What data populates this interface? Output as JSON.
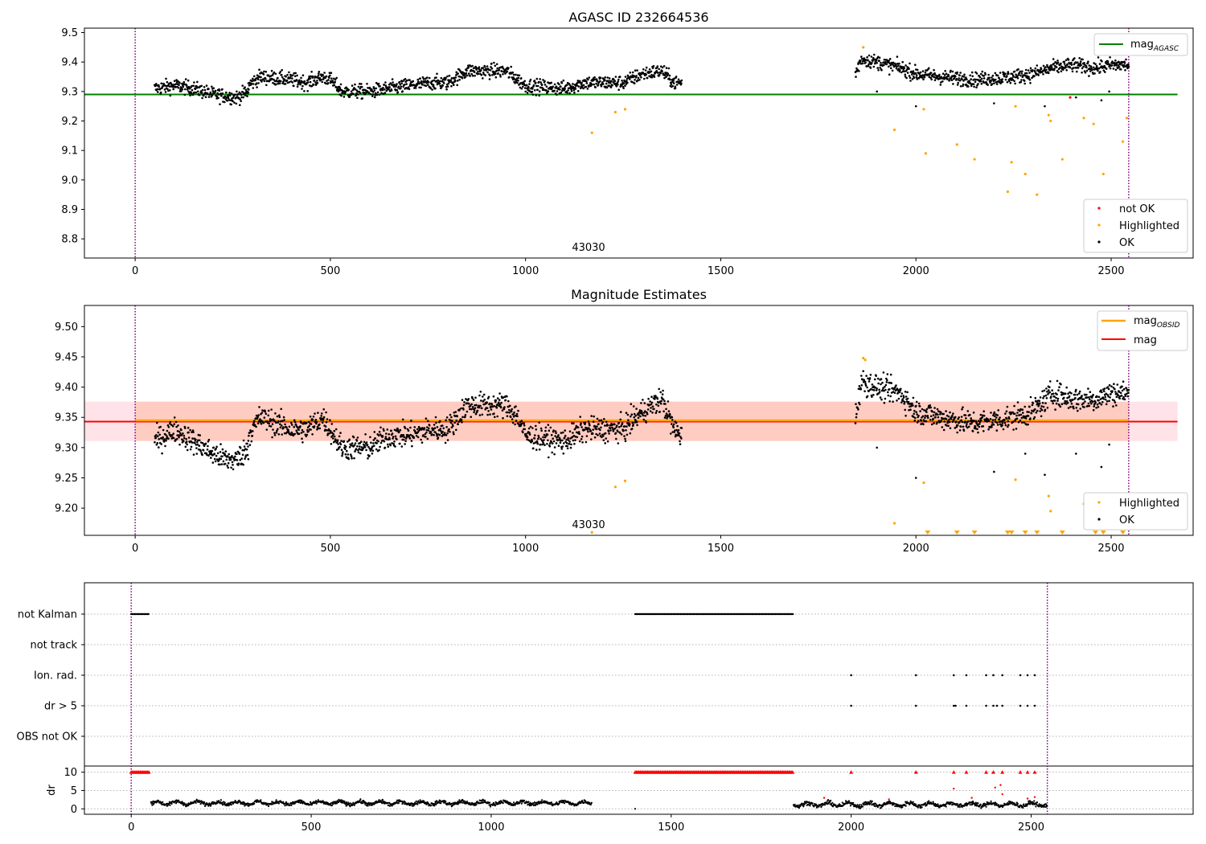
{
  "chart_data": [
    {
      "type": "scatter",
      "title": "AGASC ID 232664536",
      "obsid_annotation": "43030",
      "xlim": [
        -130,
        2710
      ],
      "ylim": [
        8.735,
        9.515
      ],
      "xticks": [
        0,
        500,
        1000,
        1500,
        2000,
        2500
      ],
      "yticks": [
        8.8,
        8.9,
        9.0,
        9.1,
        9.2,
        9.3,
        9.4,
        9.5
      ],
      "vlines": [
        0,
        2545
      ],
      "hline": {
        "y": 9.29,
        "x_range": [
          -130,
          2670
        ],
        "color": "#008000",
        "label_main": "mag",
        "label_sub": "AGASC"
      },
      "legend_top": [
        {
          "label_main": "mag",
          "label_sub": "AGASC",
          "color": "#008000"
        }
      ],
      "legend_bottom": [
        {
          "label": "not OK",
          "color": "#ff0000"
        },
        {
          "label": "Highlighted",
          "color": "#ffa500"
        },
        {
          "label": "OK",
          "color": "#000000"
        }
      ],
      "ok_segments": [
        {
          "x_range": [
            50,
            290
          ],
          "trend": [
            [
              50,
              9.31
            ],
            [
              100,
              9.32
            ],
            [
              150,
              9.31
            ],
            [
              200,
              9.29
            ],
            [
              260,
              9.28
            ],
            [
              290,
              9.3
            ]
          ],
          "noise": 0.012
        },
        {
          "x_range": [
            290,
            1400
          ],
          "trend": [
            [
              290,
              9.32
            ],
            [
              320,
              9.35
            ],
            [
              400,
              9.34
            ],
            [
              440,
              9.33
            ],
            [
              480,
              9.35
            ],
            [
              500,
              9.34
            ],
            [
              530,
              9.3
            ],
            [
              600,
              9.3
            ],
            [
              700,
              9.32
            ],
            [
              760,
              9.33
            ],
            [
              800,
              9.33
            ],
            [
              850,
              9.37
            ],
            [
              950,
              9.37
            ],
            [
              1000,
              9.32
            ],
            [
              1100,
              9.31
            ],
            [
              1150,
              9.33
            ],
            [
              1250,
              9.33
            ],
            [
              1300,
              9.36
            ],
            [
              1350,
              9.37
            ],
            [
              1380,
              9.33
            ],
            [
              1400,
              9.33
            ]
          ],
          "noise": 0.012
        },
        {
          "x_range": [
            1845,
            2545
          ],
          "trend": [
            [
              1845,
              9.36
            ],
            [
              1860,
              9.41
            ],
            [
              1900,
              9.4
            ],
            [
              1960,
              9.38
            ],
            [
              2000,
              9.36
            ],
            [
              2060,
              9.35
            ],
            [
              2150,
              9.34
            ],
            [
              2250,
              9.35
            ],
            [
              2300,
              9.36
            ],
            [
              2350,
              9.38
            ],
            [
              2400,
              9.39
            ],
            [
              2460,
              9.38
            ],
            [
              2500,
              9.39
            ],
            [
              2545,
              9.39
            ]
          ],
          "noise": 0.012
        }
      ],
      "highlighted_points": [
        [
          1170,
          9.16
        ],
        [
          1230,
          9.23
        ],
        [
          1255,
          9.24
        ],
        [
          1865,
          9.45
        ],
        [
          1945,
          9.17
        ],
        [
          2020,
          9.24
        ],
        [
          2025,
          9.09
        ],
        [
          2105,
          9.12
        ],
        [
          2150,
          9.07
        ],
        [
          2235,
          8.96
        ],
        [
          2245,
          9.06
        ],
        [
          2255,
          9.25
        ],
        [
          2280,
          9.02
        ],
        [
          2310,
          8.95
        ],
        [
          2340,
          9.22
        ],
        [
          2345,
          9.2
        ],
        [
          2375,
          9.07
        ],
        [
          2430,
          9.21
        ],
        [
          2455,
          9.19
        ],
        [
          2460,
          8.8
        ],
        [
          2480,
          9.02
        ],
        [
          2530,
          9.13
        ],
        [
          2540,
          9.21
        ]
      ],
      "notok_points": [
        [
          2395,
          9.28
        ]
      ],
      "outlier_ok_points": [
        [
          1900,
          9.3
        ],
        [
          2000,
          9.25
        ],
        [
          2200,
          9.26
        ],
        [
          2330,
          9.25
        ],
        [
          2410,
          9.28
        ],
        [
          2475,
          9.27
        ],
        [
          2495,
          9.3
        ]
      ]
    },
    {
      "type": "scatter",
      "title": "Magnitude Estimates",
      "obsid_annotation": "43030",
      "xlim": [
        -130,
        2710
      ],
      "ylim": [
        9.155,
        9.535
      ],
      "xticks": [
        0,
        500,
        1000,
        1500,
        2000,
        2500
      ],
      "yticks": [
        9.2,
        9.25,
        9.3,
        9.35,
        9.4,
        9.45,
        9.5
      ],
      "ytick_labels": [
        "9.20",
        "9.25",
        "9.30",
        "9.35",
        "9.40",
        "9.45",
        "9.50"
      ],
      "vlines": [
        0,
        2545
      ],
      "mag_line": {
        "y": 9.343,
        "color": "#ff0000"
      },
      "mag_obsid_line": {
        "y": 9.345,
        "color": "#ffa500",
        "x_range": [
          0,
          2545
        ]
      },
      "band": {
        "y_range": [
          9.311,
          9.376
        ],
        "x_range": [
          -130,
          2670
        ]
      },
      "legend_top": [
        {
          "label_main": "mag",
          "label_sub": "OBSID",
          "color": "#ffa500"
        },
        {
          "label_main": "mag",
          "label_sub": "",
          "color": "#ff0000"
        }
      ],
      "legend_bottom": [
        {
          "label": "Highlighted",
          "color": "#ffa500"
        },
        {
          "label": "OK",
          "color": "#000000"
        }
      ],
      "ok_segments": [
        {
          "x_range": [
            50,
            290
          ],
          "trend": [
            [
              50,
              9.31
            ],
            [
              100,
              9.33
            ],
            [
              150,
              9.31
            ],
            [
              200,
              9.29
            ],
            [
              230,
              9.28
            ],
            [
              260,
              9.28
            ],
            [
              290,
              9.3
            ]
          ],
          "noise": 0.01
        },
        {
          "x_range": [
            290,
            1400
          ],
          "trend": [
            [
              290,
              9.32
            ],
            [
              320,
              9.35
            ],
            [
              360,
              9.34
            ],
            [
              400,
              9.33
            ],
            [
              440,
              9.33
            ],
            [
              480,
              9.35
            ],
            [
              500,
              9.33
            ],
            [
              530,
              9.3
            ],
            [
              600,
              9.3
            ],
            [
              650,
              9.32
            ],
            [
              700,
              9.32
            ],
            [
              760,
              9.33
            ],
            [
              800,
              9.33
            ],
            [
              850,
              9.37
            ],
            [
              950,
              9.37
            ],
            [
              980,
              9.35
            ],
            [
              1000,
              9.32
            ],
            [
              1100,
              9.31
            ],
            [
              1150,
              9.33
            ],
            [
              1250,
              9.33
            ],
            [
              1300,
              9.36
            ],
            [
              1350,
              9.38
            ],
            [
              1380,
              9.33
            ],
            [
              1400,
              9.32
            ]
          ],
          "noise": 0.01
        },
        {
          "x_range": [
            1845,
            2545
          ],
          "trend": [
            [
              1845,
              9.35
            ],
            [
              1860,
              9.41
            ],
            [
              1900,
              9.4
            ],
            [
              1960,
              9.39
            ],
            [
              2000,
              9.36
            ],
            [
              2060,
              9.35
            ],
            [
              2150,
              9.34
            ],
            [
              2250,
              9.35
            ],
            [
              2300,
              9.36
            ],
            [
              2350,
              9.39
            ],
            [
              2400,
              9.38
            ],
            [
              2460,
              9.38
            ],
            [
              2500,
              9.39
            ],
            [
              2545,
              9.39
            ]
          ],
          "noise": 0.01
        }
      ],
      "highlighted_points": [
        [
          1170,
          9.16
        ],
        [
          1230,
          9.235
        ],
        [
          1255,
          9.245
        ],
        [
          1865,
          9.448
        ],
        [
          1870,
          9.445
        ],
        [
          1945,
          9.175
        ],
        [
          2020,
          9.242
        ],
        [
          2255,
          9.247
        ],
        [
          2340,
          9.22
        ],
        [
          2345,
          9.195
        ],
        [
          2430,
          9.207
        ],
        [
          2455,
          9.188
        ],
        [
          2540,
          9.213
        ]
      ],
      "highlighted_offscale_x": [
        2030,
        2105,
        2150,
        2235,
        2245,
        2280,
        2310,
        2375,
        2460,
        2480,
        2530
      ],
      "outlier_ok_points": [
        [
          1900,
          9.3
        ],
        [
          2000,
          9.25
        ],
        [
          2200,
          9.26
        ],
        [
          2280,
          9.29
        ],
        [
          2330,
          9.255
        ],
        [
          2410,
          9.29
        ],
        [
          2475,
          9.268
        ],
        [
          2495,
          9.305
        ]
      ]
    },
    {
      "type": "scatter",
      "xlim": [
        -130,
        2950
      ],
      "xticks": [
        0,
        500,
        1000,
        1500,
        2000,
        2500
      ],
      "vlines": [
        0,
        2545
      ],
      "flag_rows": [
        "not Kalman",
        "not track",
        "Ion. rad.",
        "dr > 5",
        "OBS not OK"
      ],
      "flags": {
        "not Kalman": {
          "ranges": [
            [
              0,
              50
            ],
            [
              1400,
              1840
            ]
          ]
        },
        "not track": {
          "ranges": []
        },
        "Ion. rad.": {
          "points": [
            2000,
            2180,
            2285,
            2320,
            2375,
            2395,
            2420,
            2470,
            2490,
            2510
          ]
        },
        "dr > 5": {
          "points": [
            2000,
            2180,
            2285,
            2290,
            2320,
            2375,
            2395,
            2405,
            2420,
            2470,
            2490,
            2510
          ]
        },
        "OBS not OK": {
          "points": []
        }
      },
      "dr_ylabel": "dr",
      "dr_ylim": [
        -0.6,
        10.8
      ],
      "dr_yticks": [
        0,
        5,
        10
      ],
      "dr_clip": 10,
      "dr_segments": [
        [
          55,
          1280,
          1.6,
          0.7
        ],
        [
          1400,
          1400,
          0.4,
          0.3
        ],
        [
          1840,
          2545,
          1.2,
          0.8
        ]
      ],
      "dr_clipped_ranges": [
        [
          0,
          50
        ],
        [
          1400,
          1840
        ]
      ],
      "dr_clipped_points": [
        2000,
        2180,
        2285,
        2320,
        2375,
        2395,
        2420,
        2470,
        2490,
        2510
      ],
      "dr_red_points": [
        [
          1925,
          3.0
        ],
        [
          2105,
          2.6
        ],
        [
          2285,
          5.5
        ],
        [
          2335,
          3.0
        ],
        [
          2400,
          5.8
        ],
        [
          2415,
          6.5
        ],
        [
          2420,
          4.0
        ],
        [
          2490,
          2.8
        ],
        [
          2510,
          3.2
        ]
      ]
    }
  ]
}
